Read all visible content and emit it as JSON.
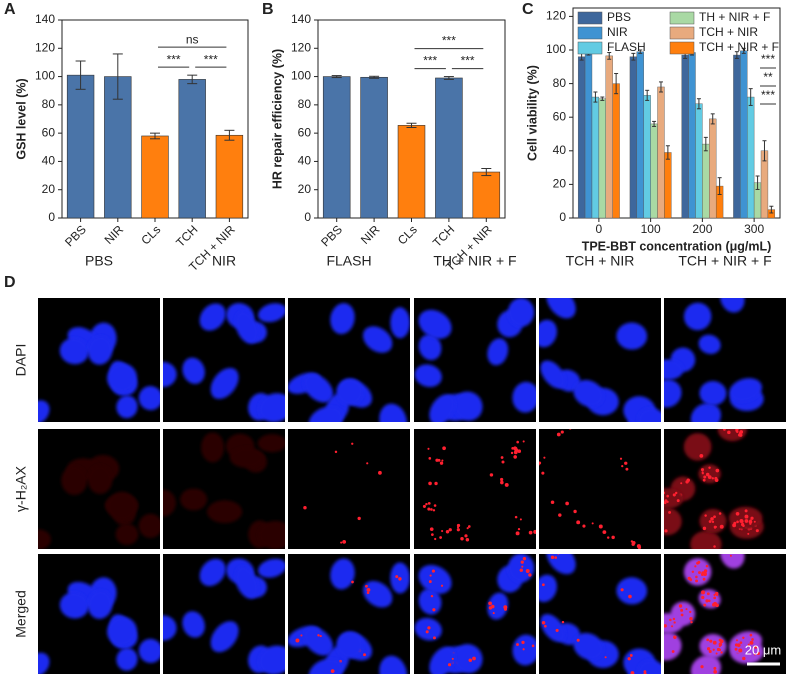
{
  "chart_data": [
    {
      "type": "bar",
      "panel": "A",
      "ylabel": "GSH level (%)",
      "categories": [
        "PBS",
        "NIR",
        "CLs",
        "TCH",
        "TCH + NIR"
      ],
      "values": [
        101,
        100,
        58,
        98,
        58.5
      ],
      "errors": [
        10,
        16,
        2,
        3,
        3.5
      ],
      "colors": [
        "#4a74a8",
        "#4a74a8",
        "#ff7f0e",
        "#4a74a8",
        "#ff7f0e"
      ],
      "ylim": [
        0,
        140
      ],
      "yticks": [
        0,
        20,
        40,
        60,
        80,
        100,
        120,
        140
      ],
      "annotations": [
        {
          "label": "***",
          "between": [
            "CLs",
            "TCH"
          ]
        },
        {
          "label": "***",
          "between": [
            "TCH",
            "TCH + NIR"
          ]
        },
        {
          "label": "ns",
          "between": [
            "CLs",
            "TCH + NIR"
          ]
        }
      ]
    },
    {
      "type": "bar",
      "panel": "B",
      "ylabel": "HR repair efficiency (%)",
      "categories": [
        "PBS",
        "NIR",
        "CLs",
        "TCH",
        "TCH + NIR"
      ],
      "values": [
        100,
        99.5,
        65.5,
        99,
        32.5
      ],
      "errors": [
        0.7,
        0.7,
        1.5,
        1,
        2.5
      ],
      "colors": [
        "#4a74a8",
        "#4a74a8",
        "#ff7f0e",
        "#4a74a8",
        "#ff7f0e"
      ],
      "ylim": [
        0,
        140
      ],
      "yticks": [
        0,
        20,
        40,
        60,
        80,
        100,
        120,
        140
      ],
      "annotations": [
        {
          "label": "***",
          "between": [
            "CLs",
            "TCH"
          ]
        },
        {
          "label": "***",
          "between": [
            "TCH",
            "TCH + NIR"
          ]
        },
        {
          "label": "***",
          "between": [
            "CLs",
            "TCH + NIR"
          ]
        }
      ]
    },
    {
      "type": "grouped-bar",
      "panel": "C",
      "ylabel": "Cell viability (%)",
      "xlabel": "TPE-BBT concentration (μg/mL)",
      "categories": [
        "0",
        "100",
        "200",
        "300"
      ],
      "series": [
        {
          "name": "PBS",
          "color": "#3e679c",
          "values": [
            96,
            96,
            97,
            97
          ],
          "errors": [
            2,
            2,
            2,
            2
          ]
        },
        {
          "name": "NIR",
          "color": "#3f93d2",
          "values": [
            98.5,
            99,
            98.5,
            99.5
          ],
          "errors": [
            1.5,
            1,
            1.5,
            1.5
          ]
        },
        {
          "name": "FLASH",
          "color": "#62cbe3",
          "values": [
            72,
            73,
            68,
            72
          ],
          "errors": [
            3,
            3,
            3,
            5
          ]
        },
        {
          "name": "TH + NIR + F",
          "color": "#a9d9a4",
          "values": [
            71,
            56,
            44,
            21
          ],
          "errors": [
            1,
            1.5,
            4,
            4
          ]
        },
        {
          "name": "TCH + NIR",
          "color": "#e8aa7e",
          "values": [
            96.5,
            78,
            59,
            40
          ],
          "errors": [
            2,
            3,
            3,
            6
          ]
        },
        {
          "name": "TCH + NIR + F",
          "color": "#ff7f0e",
          "values": [
            80,
            39,
            19,
            5
          ],
          "errors": [
            6,
            4,
            5,
            2
          ]
        }
      ],
      "ylim": [
        0,
        125
      ],
      "yticks": [
        0,
        20,
        40,
        60,
        80,
        100,
        120
      ],
      "annotations": [
        {
          "label": "***"
        },
        {
          "label": "**"
        },
        {
          "label": "***"
        }
      ]
    }
  ],
  "panel_d": {
    "panel": "D",
    "columns": [
      "PBS",
      "NIR",
      "FLASH",
      "TH + NIR + F",
      "TCH + NIR",
      "TCH + NIR + F"
    ],
    "rows": [
      "DAPI",
      "γ-H₂AX",
      "Merged"
    ],
    "scale_bar": "20 μm"
  }
}
